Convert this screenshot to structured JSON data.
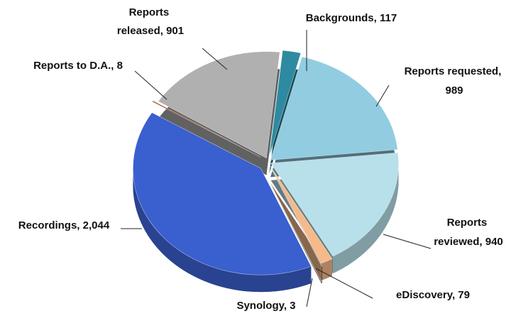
{
  "chart_data": {
    "type": "pie",
    "values": [
      117,
      989,
      940,
      79,
      3,
      2044,
      8,
      901
    ],
    "value_labels": [
      "Backgrounds, 117",
      "Reports requested, 989",
      "Reports reviewed, 940",
      "eDiscovery, 79",
      "Synology, 3",
      "Recordings, 2,044",
      "Reports to D.A., 8",
      "Reports released, 901"
    ],
    "colors": [
      "#2e8aa0",
      "#92cce0",
      "#b7e0ea",
      "#f5b98a",
      "#111111",
      "#3a5fcf",
      "#8b3a0a",
      "#b0b0b0"
    ]
  }
}
